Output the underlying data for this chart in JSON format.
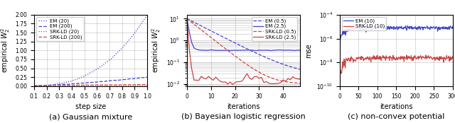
{
  "fig_width": 6.4,
  "fig_height": 1.74,
  "dpi": 100,
  "subplot_a": {
    "caption": "(a) Gaussian mixture",
    "xlabel": "step size",
    "ylabel": "empirical $W_2^2$",
    "xlim": [
      0.1,
      1.0
    ],
    "ylim": [
      0.0,
      2.0
    ],
    "xticks": [
      0.1,
      0.2,
      0.3,
      0.4,
      0.5,
      0.6,
      0.7,
      0.8,
      0.9,
      1.0
    ],
    "yticks": [
      0.0,
      0.25,
      0.5,
      0.75,
      1.0,
      1.25,
      1.5,
      1.75,
      2.0
    ],
    "legend": [
      "EM (20)",
      "EM (200)",
      "SRK-LD (20)",
      "SRK-LD (200)"
    ],
    "colors": [
      "#4444cc",
      "#4444cc",
      "#cc4444",
      "#cc4444"
    ],
    "linestyles": [
      "dotted",
      "dashed",
      "dotted",
      "dashed"
    ]
  },
  "subplot_b": {
    "caption": "(b) Bayesian logistic regression",
    "xlabel": "iterations",
    "ylabel": "empirical $W_2^2$",
    "xlim": [
      0,
      47
    ],
    "xticks": [
      0,
      10,
      20,
      30,
      40
    ],
    "legend": [
      "EM (0.5)",
      "EM (2.5)",
      "SRK-LD (0.5)",
      "SRK-LD (2.5)"
    ],
    "colors": [
      "#4444cc",
      "#4444cc",
      "#cc4444",
      "#cc4444"
    ],
    "linestyles": [
      "dashed",
      "solid",
      "dashed",
      "solid"
    ]
  },
  "subplot_c": {
    "caption": "(c) non-convex potential",
    "xlabel": "iterations",
    "ylabel": "mse",
    "xlim": [
      0,
      300
    ],
    "xticks": [
      0,
      50,
      100,
      150,
      200,
      250,
      300
    ],
    "legend": [
      "EM (10)",
      "SRK-LD (10)"
    ],
    "colors": [
      "#4444cc",
      "#cc4444"
    ],
    "linestyles": [
      "solid",
      "solid"
    ]
  }
}
